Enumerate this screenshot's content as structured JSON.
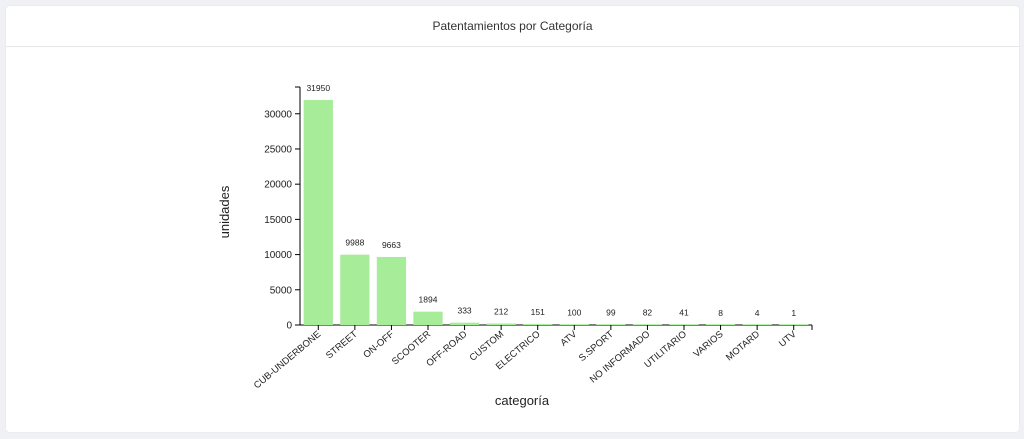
{
  "panel": {
    "title": "Patentamientos por Categoría"
  },
  "chart_data": {
    "type": "bar",
    "categories": [
      "CUB-UNDERBONE",
      "STREET",
      "ON-OFF",
      "SCOOTER",
      "OFF-ROAD",
      "CUSTOM",
      "ELECTRICO",
      "ATV",
      "S.SPORT",
      "NO INFORMADO",
      "UTILITARIO",
      "VARIOS",
      "MOTARD",
      "UTV"
    ],
    "values": [
      31950,
      9988,
      9663,
      1894,
      333,
      212,
      151,
      100,
      99,
      82,
      41,
      8,
      4,
      1
    ],
    "yticks": [
      "0",
      "5000",
      "10000",
      "15000",
      "20000",
      "25000",
      "30000"
    ],
    "ylim": [
      0,
      33800
    ],
    "xlabel": "categoría",
    "ylabel": "unidades",
    "bar_color": "#a6ec99",
    "grid": false,
    "legend": "none"
  }
}
